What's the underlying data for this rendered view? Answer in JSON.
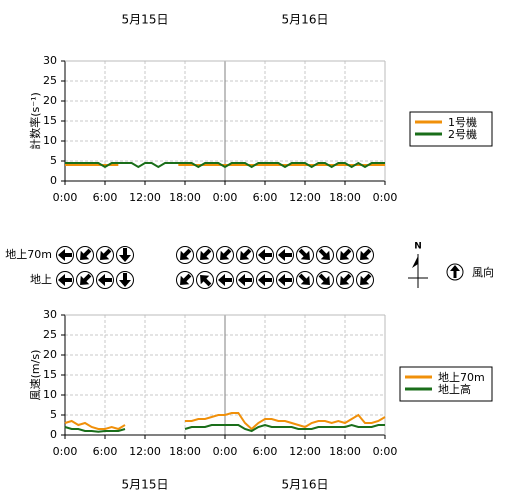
{
  "chart_data": [
    {
      "type": "line",
      "ylabel": "計数率(s⁻¹)",
      "dates": [
        {
          "value": 12,
          "label": "5月15日"
        },
        {
          "value": 36,
          "label": "5月16日"
        }
      ],
      "x": [
        0,
        1,
        2,
        3,
        4,
        5,
        6,
        7,
        8,
        9,
        10,
        11,
        12,
        13,
        14,
        15,
        16,
        17,
        18,
        19,
        20,
        21,
        22,
        23,
        24,
        25,
        26,
        27,
        28,
        29,
        30,
        31,
        32,
        33,
        34,
        35,
        36,
        37,
        38,
        39,
        40,
        41,
        42,
        43,
        44,
        45,
        46,
        47,
        48
      ],
      "xlim": [
        0,
        48
      ],
      "xticks": [
        {
          "value": 0,
          "label": "0:00"
        },
        {
          "value": 6,
          "label": "6:00"
        },
        {
          "value": 12,
          "label": "12:00"
        },
        {
          "value": 18,
          "label": "18:00"
        },
        {
          "value": 24,
          "label": "0:00"
        },
        {
          "value": 30,
          "label": "6:00"
        },
        {
          "value": 36,
          "label": "12:00"
        },
        {
          "value": 42,
          "label": "18:00"
        },
        {
          "value": 48,
          "label": "0:00"
        }
      ],
      "ylim": [
        0,
        30
      ],
      "yticks": [
        0,
        5,
        10,
        15,
        20,
        25,
        30
      ],
      "grid": true,
      "boundary": 24,
      "legend": "right",
      "series": [
        {
          "name": "1号機",
          "color": "#f0900a",
          "values": [
            4,
            4,
            4,
            4,
            4,
            4,
            4,
            4,
            4,
            null,
            null,
            null,
            null,
            null,
            null,
            null,
            null,
            4,
            4,
            4,
            4,
            4,
            4,
            4,
            4,
            4,
            4,
            4,
            4,
            4,
            4,
            4,
            4,
            4,
            4,
            4,
            4,
            4,
            4,
            4,
            4,
            4,
            4,
            4,
            4,
            4,
            4,
            4,
            4
          ]
        },
        {
          "name": "2号機",
          "color": "#1a6e1a",
          "values": [
            4.5,
            4.5,
            4.5,
            4.5,
            4.5,
            4.5,
            3.5,
            4.5,
            4.5,
            4.5,
            4.5,
            3.5,
            4.5,
            4.5,
            3.5,
            4.5,
            4.5,
            4.5,
            4.5,
            4.5,
            3.5,
            4.5,
            4.5,
            4.5,
            3.5,
            4.5,
            4.5,
            4.5,
            3.5,
            4.5,
            4.5,
            4.5,
            4.5,
            3.5,
            4.5,
            4.5,
            4.5,
            3.5,
            4.5,
            4.5,
            3.5,
            4.5,
            4.5,
            3.5,
            4.5,
            3.5,
            4.5,
            4.5,
            4.5
          ]
        }
      ]
    },
    {
      "type": "line",
      "ylabel": "風速(m/s)",
      "dates": [
        {
          "value": 12,
          "label": "5月15日"
        },
        {
          "value": 36,
          "label": "5月16日"
        }
      ],
      "x": [
        0,
        1,
        2,
        3,
        4,
        5,
        6,
        7,
        8,
        9,
        10,
        11,
        12,
        13,
        14,
        15,
        16,
        17,
        18,
        19,
        20,
        21,
        22,
        23,
        24,
        25,
        26,
        27,
        28,
        29,
        30,
        31,
        32,
        33,
        34,
        35,
        36,
        37,
        38,
        39,
        40,
        41,
        42,
        43,
        44,
        45,
        46,
        47,
        48
      ],
      "xlim": [
        0,
        48
      ],
      "xticks": [
        {
          "value": 0,
          "label": "0:00"
        },
        {
          "value": 6,
          "label": "6:00"
        },
        {
          "value": 12,
          "label": "12:00"
        },
        {
          "value": 18,
          "label": "18:00"
        },
        {
          "value": 24,
          "label": "0:00"
        },
        {
          "value": 30,
          "label": "6:00"
        },
        {
          "value": 36,
          "label": "12:00"
        },
        {
          "value": 42,
          "label": "18:00"
        },
        {
          "value": 48,
          "label": "0:00"
        }
      ],
      "ylim": [
        0,
        30
      ],
      "yticks": [
        0,
        5,
        10,
        15,
        20,
        25,
        30
      ],
      "grid": true,
      "boundary": 24,
      "legend": "right",
      "series": [
        {
          "name": "地上70m",
          "color": "#f0900a",
          "values": [
            3,
            3.5,
            2.5,
            3,
            2,
            1.5,
            1.5,
            2,
            1.5,
            2.5,
            null,
            null,
            null,
            null,
            null,
            null,
            null,
            null,
            3.5,
            3.5,
            4,
            4,
            4.5,
            5,
            5,
            5.5,
            5.5,
            3,
            1.5,
            3,
            4,
            4,
            3.5,
            3.5,
            3,
            2.5,
            2,
            3,
            3.5,
            3.5,
            3,
            3.5,
            3,
            4,
            5,
            3,
            3,
            3.5,
            4.5
          ]
        },
        {
          "name": "地上高",
          "color": "#1a6e1a",
          "values": [
            2,
            1.5,
            1.5,
            1,
            1,
            0.8,
            1,
            1,
            1,
            1.5,
            null,
            null,
            null,
            null,
            null,
            null,
            null,
            null,
            1.5,
            2,
            2,
            2,
            2.5,
            2.5,
            2.5,
            2.5,
            2.5,
            1.5,
            1,
            2,
            2.5,
            2,
            2,
            2,
            2,
            1.5,
            1.5,
            1.5,
            2,
            2,
            2,
            2,
            2,
            2.5,
            2,
            2,
            2,
            2.5,
            2.5
          ]
        }
      ]
    }
  ],
  "wind_direction": {
    "hours": [
      0,
      3,
      6,
      9,
      18,
      21,
      24,
      27,
      30,
      33,
      36,
      39,
      42,
      45
    ],
    "rows": [
      {
        "label": "地上70m",
        "angles": [
          270,
          225,
          225,
          180,
          225,
          225,
          225,
          225,
          270,
          270,
          135,
          135,
          225,
          225
        ]
      },
      {
        "label": "地上",
        "angles": [
          270,
          225,
          270,
          180,
          225,
          315,
          270,
          270,
          270,
          270,
          135,
          135,
          225,
          225
        ]
      }
    ],
    "compass": "N",
    "legend": "風向"
  }
}
